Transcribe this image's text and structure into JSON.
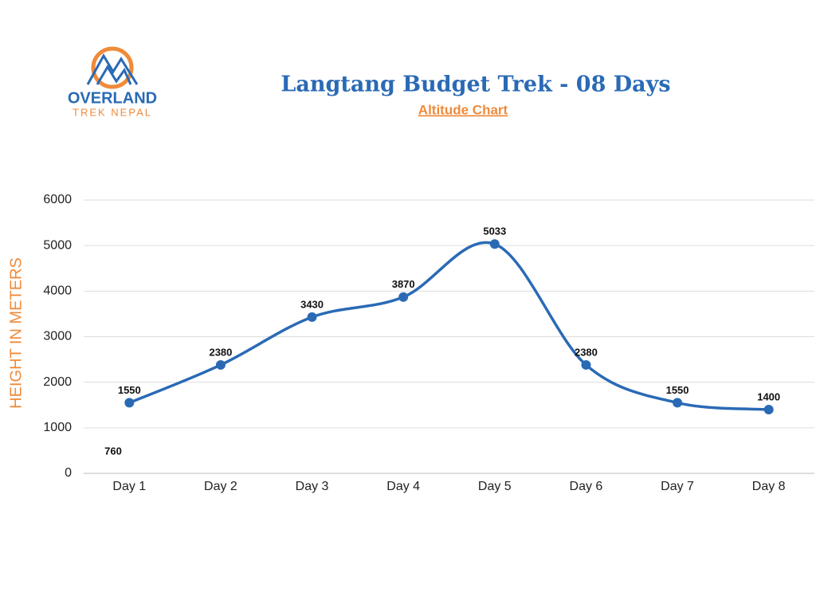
{
  "logo": {
    "name": "OVERLAND",
    "tagline": "TREK NEPAL"
  },
  "chart_data": {
    "type": "line",
    "title": "Langtang Budget Trek - 08 Days",
    "subtitle": "Altitude Chart",
    "y_label": "HEIGHT IN METERS",
    "categories": [
      "Day 1",
      "Day 2",
      "Day 3",
      "Day 4",
      "Day 5",
      "Day 6",
      "Day 7",
      "Day 8"
    ],
    "series": [
      {
        "name": "Altitude",
        "color": "#2a6ab5",
        "values": [
          1550,
          2380,
          3430,
          3870,
          5033,
          2380,
          1550,
          1400
        ]
      }
    ],
    "annotations": [
      "760"
    ],
    "ylim": [
      0,
      6000
    ],
    "yticks": [
      0,
      1000,
      2000,
      3000,
      4000,
      5000,
      6000
    ],
    "grid": true,
    "smooth": true
  }
}
